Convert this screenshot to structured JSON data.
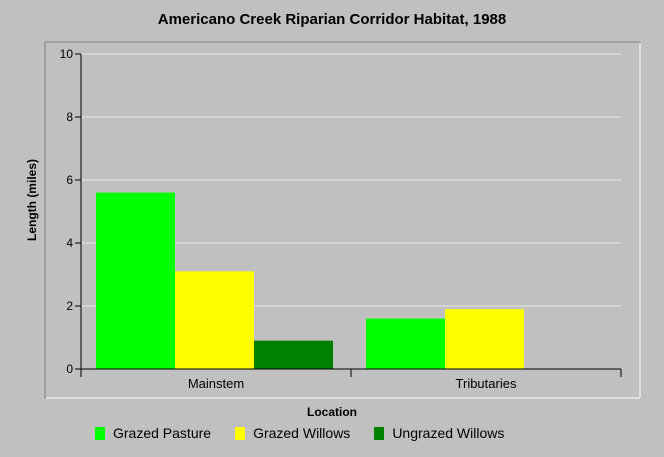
{
  "chart_data": {
    "type": "bar",
    "title": "Americano Creek Riparian Corridor Habitat, 1988",
    "xlabel": "Location",
    "ylabel": "Length (miles)",
    "ylim": [
      0,
      10
    ],
    "yticks": [
      0,
      2,
      4,
      6,
      8,
      10
    ],
    "grid": true,
    "legend_position": "bottom",
    "categories": [
      "Mainstem",
      "Tributaries"
    ],
    "series": [
      {
        "name": "Grazed Pasture",
        "values": [
          5.6,
          1.6
        ],
        "color": "#00ff00"
      },
      {
        "name": "Grazed Willows",
        "values": [
          3.1,
          1.9
        ],
        "color": "#ffff00"
      },
      {
        "name": "Ungrazed Willows",
        "values": [
          0.9,
          0
        ],
        "color": "#008000"
      }
    ]
  }
}
